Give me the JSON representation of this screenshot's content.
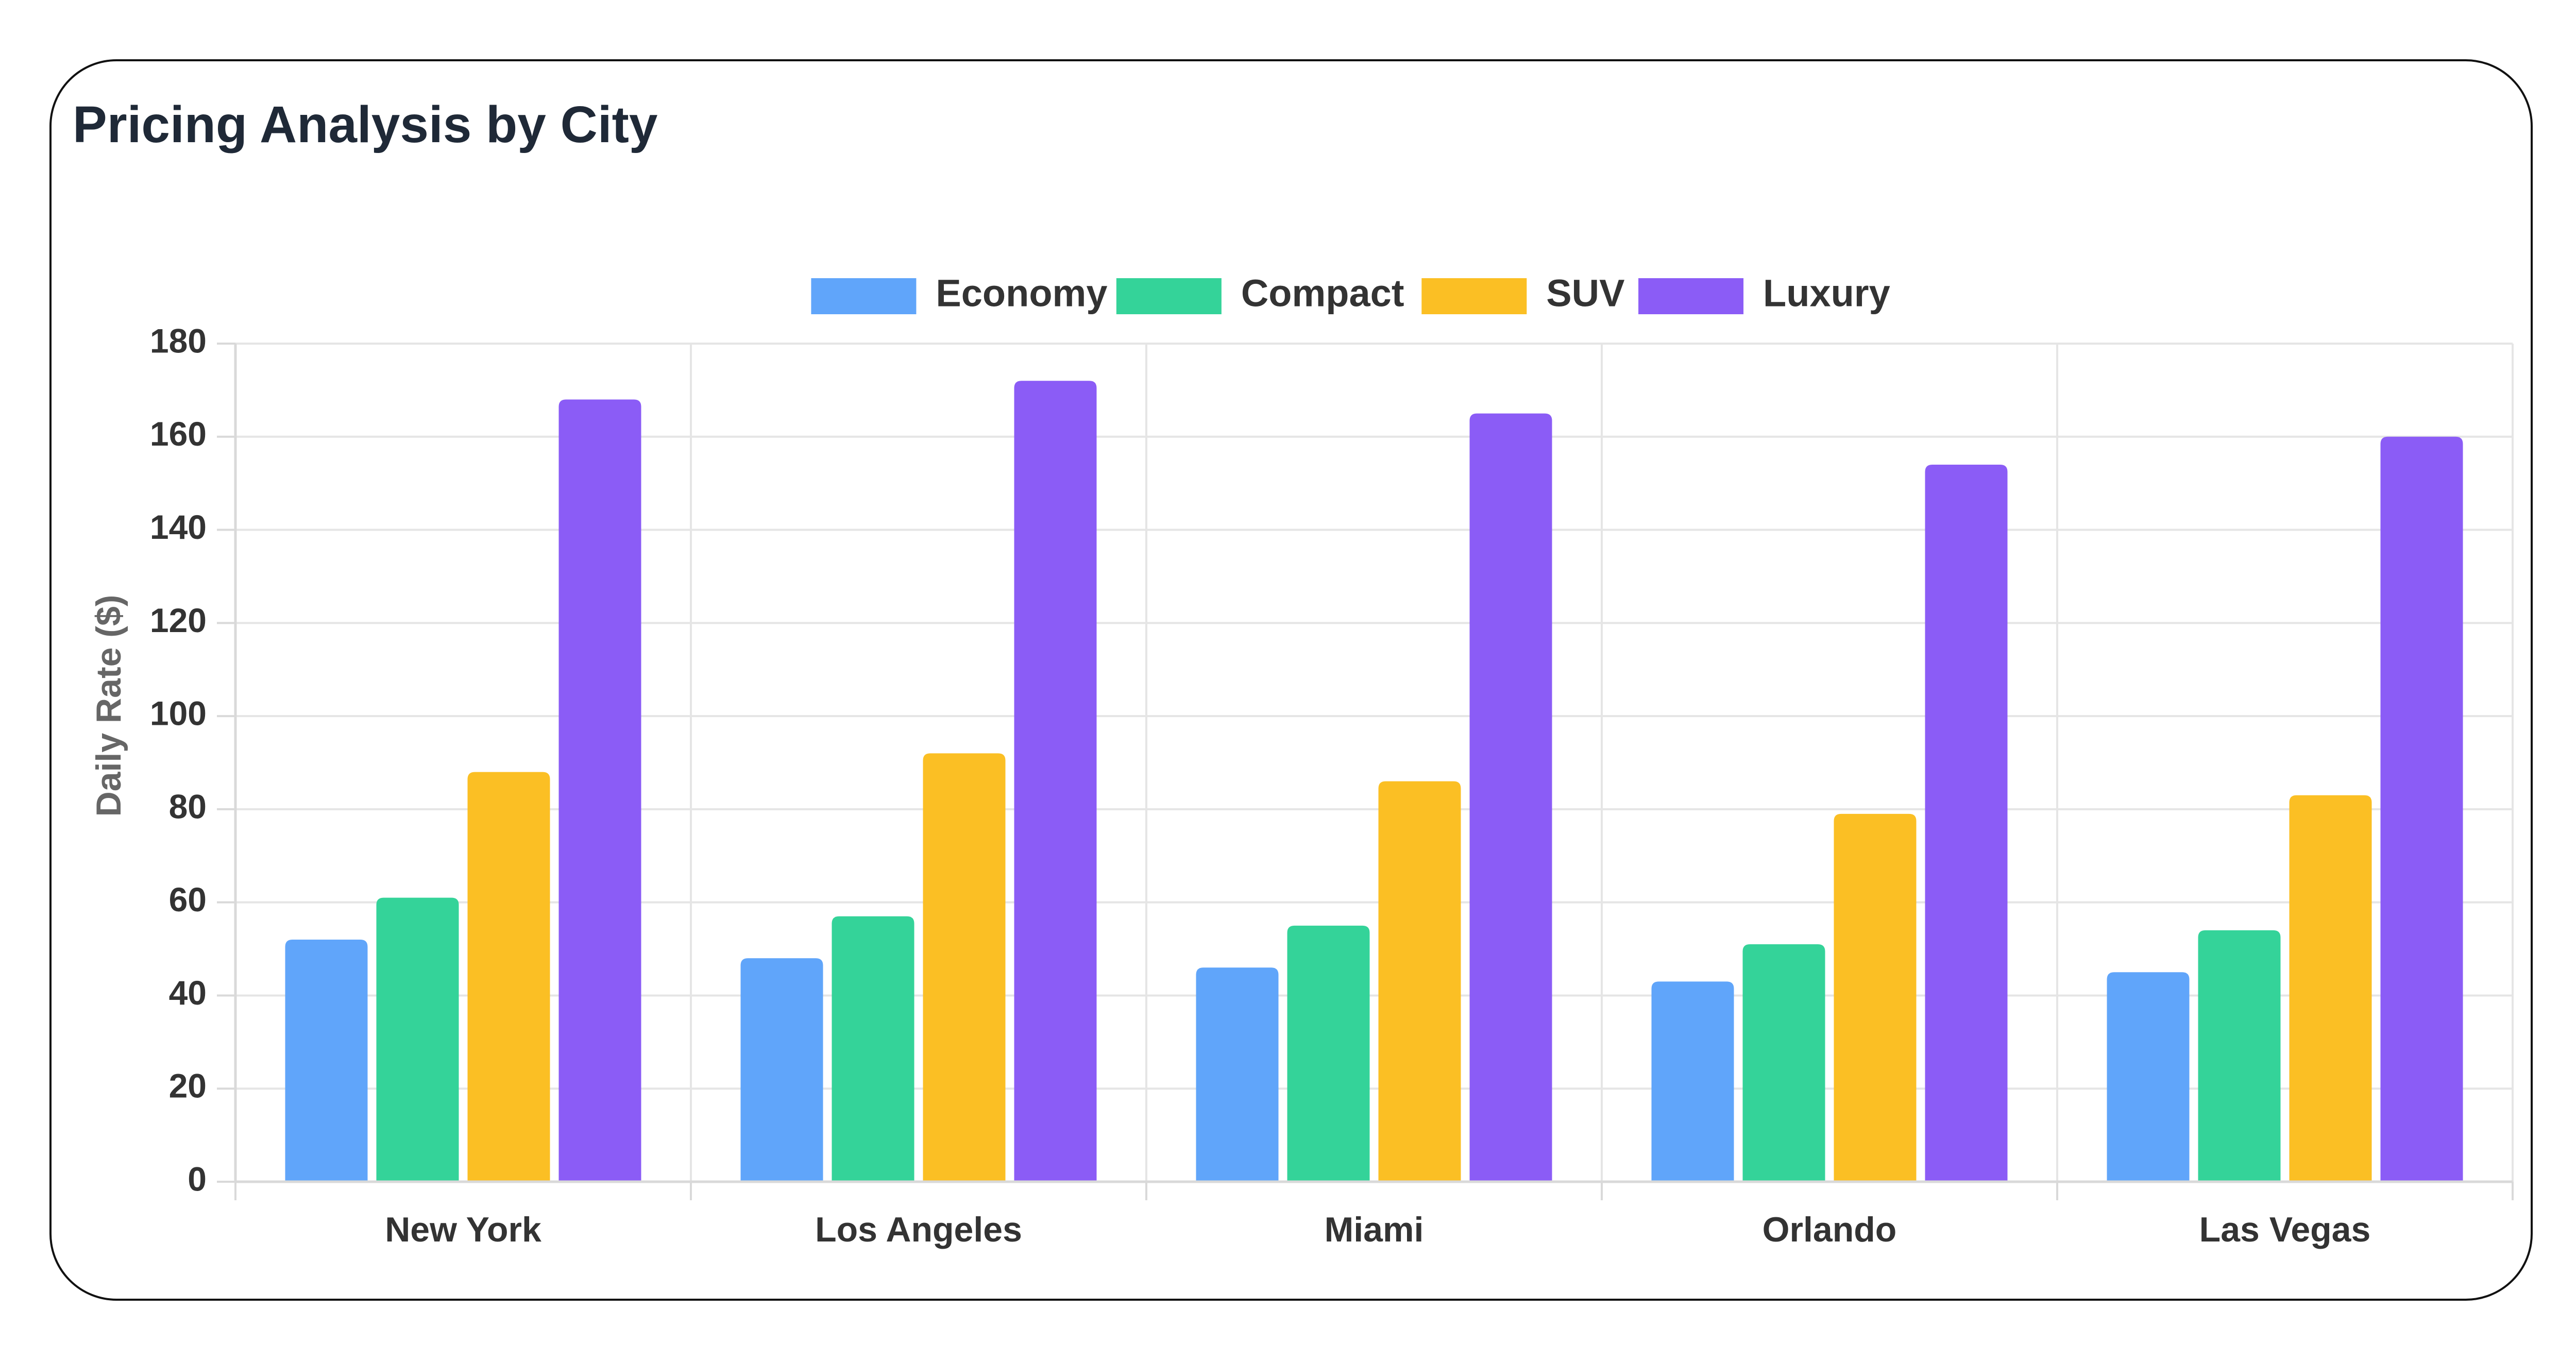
{
  "card": {
    "title": "Pricing Analysis by City"
  },
  "chart_data": {
    "type": "bar",
    "title": "",
    "xlabel": "",
    "ylabel": "Daily Rate ($)",
    "ylim": [
      0,
      180
    ],
    "yticks": [
      0,
      20,
      40,
      60,
      80,
      100,
      120,
      140,
      160,
      180
    ],
    "categories": [
      "New York",
      "Los Angeles",
      "Miami",
      "Orlando",
      "Las Vegas"
    ],
    "legend_position": "top-center",
    "grid": true,
    "series": [
      {
        "name": "Economy",
        "color": "#60a5fa",
        "values": [
          52,
          48,
          46,
          43,
          45
        ]
      },
      {
        "name": "Compact",
        "color": "#34d399",
        "values": [
          61,
          57,
          55,
          51,
          54
        ]
      },
      {
        "name": "SUV",
        "color": "#fbbf24",
        "values": [
          88,
          92,
          86,
          79,
          83
        ]
      },
      {
        "name": "Luxury",
        "color": "#8b5cf6",
        "values": [
          168,
          172,
          165,
          154,
          160
        ]
      }
    ]
  }
}
